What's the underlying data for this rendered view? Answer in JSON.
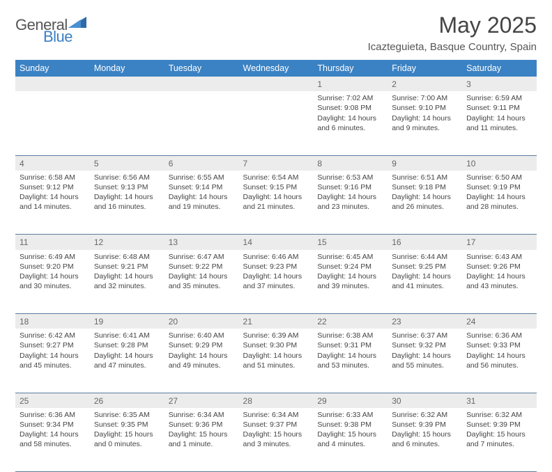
{
  "logo": {
    "general": "General",
    "blue": "Blue"
  },
  "title": "May 2025",
  "location": "Icazteguieta, Basque Country, Spain",
  "colors": {
    "header_bg": "#3b82c4",
    "header_text": "#ffffff",
    "daynum_bg": "#ececec",
    "row_border": "#5a7a9a",
    "body_text": "#444444",
    "logo_gray": "#555555",
    "logo_blue": "#3b7fc4"
  },
  "weekdays": [
    "Sunday",
    "Monday",
    "Tuesday",
    "Wednesday",
    "Thursday",
    "Friday",
    "Saturday"
  ],
  "weeks": [
    {
      "nums": [
        "",
        "",
        "",
        "",
        "1",
        "2",
        "3"
      ],
      "cells": [
        null,
        null,
        null,
        null,
        {
          "sr": "Sunrise: 7:02 AM",
          "ss": "Sunset: 9:08 PM",
          "dl": "Daylight: 14 hours and 6 minutes."
        },
        {
          "sr": "Sunrise: 7:00 AM",
          "ss": "Sunset: 9:10 PM",
          "dl": "Daylight: 14 hours and 9 minutes."
        },
        {
          "sr": "Sunrise: 6:59 AM",
          "ss": "Sunset: 9:11 PM",
          "dl": "Daylight: 14 hours and 11 minutes."
        }
      ]
    },
    {
      "nums": [
        "4",
        "5",
        "6",
        "7",
        "8",
        "9",
        "10"
      ],
      "cells": [
        {
          "sr": "Sunrise: 6:58 AM",
          "ss": "Sunset: 9:12 PM",
          "dl": "Daylight: 14 hours and 14 minutes."
        },
        {
          "sr": "Sunrise: 6:56 AM",
          "ss": "Sunset: 9:13 PM",
          "dl": "Daylight: 14 hours and 16 minutes."
        },
        {
          "sr": "Sunrise: 6:55 AM",
          "ss": "Sunset: 9:14 PM",
          "dl": "Daylight: 14 hours and 19 minutes."
        },
        {
          "sr": "Sunrise: 6:54 AM",
          "ss": "Sunset: 9:15 PM",
          "dl": "Daylight: 14 hours and 21 minutes."
        },
        {
          "sr": "Sunrise: 6:53 AM",
          "ss": "Sunset: 9:16 PM",
          "dl": "Daylight: 14 hours and 23 minutes."
        },
        {
          "sr": "Sunrise: 6:51 AM",
          "ss": "Sunset: 9:18 PM",
          "dl": "Daylight: 14 hours and 26 minutes."
        },
        {
          "sr": "Sunrise: 6:50 AM",
          "ss": "Sunset: 9:19 PM",
          "dl": "Daylight: 14 hours and 28 minutes."
        }
      ]
    },
    {
      "nums": [
        "11",
        "12",
        "13",
        "14",
        "15",
        "16",
        "17"
      ],
      "cells": [
        {
          "sr": "Sunrise: 6:49 AM",
          "ss": "Sunset: 9:20 PM",
          "dl": "Daylight: 14 hours and 30 minutes."
        },
        {
          "sr": "Sunrise: 6:48 AM",
          "ss": "Sunset: 9:21 PM",
          "dl": "Daylight: 14 hours and 32 minutes."
        },
        {
          "sr": "Sunrise: 6:47 AM",
          "ss": "Sunset: 9:22 PM",
          "dl": "Daylight: 14 hours and 35 minutes."
        },
        {
          "sr": "Sunrise: 6:46 AM",
          "ss": "Sunset: 9:23 PM",
          "dl": "Daylight: 14 hours and 37 minutes."
        },
        {
          "sr": "Sunrise: 6:45 AM",
          "ss": "Sunset: 9:24 PM",
          "dl": "Daylight: 14 hours and 39 minutes."
        },
        {
          "sr": "Sunrise: 6:44 AM",
          "ss": "Sunset: 9:25 PM",
          "dl": "Daylight: 14 hours and 41 minutes."
        },
        {
          "sr": "Sunrise: 6:43 AM",
          "ss": "Sunset: 9:26 PM",
          "dl": "Daylight: 14 hours and 43 minutes."
        }
      ]
    },
    {
      "nums": [
        "18",
        "19",
        "20",
        "21",
        "22",
        "23",
        "24"
      ],
      "cells": [
        {
          "sr": "Sunrise: 6:42 AM",
          "ss": "Sunset: 9:27 PM",
          "dl": "Daylight: 14 hours and 45 minutes."
        },
        {
          "sr": "Sunrise: 6:41 AM",
          "ss": "Sunset: 9:28 PM",
          "dl": "Daylight: 14 hours and 47 minutes."
        },
        {
          "sr": "Sunrise: 6:40 AM",
          "ss": "Sunset: 9:29 PM",
          "dl": "Daylight: 14 hours and 49 minutes."
        },
        {
          "sr": "Sunrise: 6:39 AM",
          "ss": "Sunset: 9:30 PM",
          "dl": "Daylight: 14 hours and 51 minutes."
        },
        {
          "sr": "Sunrise: 6:38 AM",
          "ss": "Sunset: 9:31 PM",
          "dl": "Daylight: 14 hours and 53 minutes."
        },
        {
          "sr": "Sunrise: 6:37 AM",
          "ss": "Sunset: 9:32 PM",
          "dl": "Daylight: 14 hours and 55 minutes."
        },
        {
          "sr": "Sunrise: 6:36 AM",
          "ss": "Sunset: 9:33 PM",
          "dl": "Daylight: 14 hours and 56 minutes."
        }
      ]
    },
    {
      "nums": [
        "25",
        "26",
        "27",
        "28",
        "29",
        "30",
        "31"
      ],
      "cells": [
        {
          "sr": "Sunrise: 6:36 AM",
          "ss": "Sunset: 9:34 PM",
          "dl": "Daylight: 14 hours and 58 minutes."
        },
        {
          "sr": "Sunrise: 6:35 AM",
          "ss": "Sunset: 9:35 PM",
          "dl": "Daylight: 15 hours and 0 minutes."
        },
        {
          "sr": "Sunrise: 6:34 AM",
          "ss": "Sunset: 9:36 PM",
          "dl": "Daylight: 15 hours and 1 minute."
        },
        {
          "sr": "Sunrise: 6:34 AM",
          "ss": "Sunset: 9:37 PM",
          "dl": "Daylight: 15 hours and 3 minutes."
        },
        {
          "sr": "Sunrise: 6:33 AM",
          "ss": "Sunset: 9:38 PM",
          "dl": "Daylight: 15 hours and 4 minutes."
        },
        {
          "sr": "Sunrise: 6:32 AM",
          "ss": "Sunset: 9:39 PM",
          "dl": "Daylight: 15 hours and 6 minutes."
        },
        {
          "sr": "Sunrise: 6:32 AM",
          "ss": "Sunset: 9:39 PM",
          "dl": "Daylight: 15 hours and 7 minutes."
        }
      ]
    }
  ]
}
